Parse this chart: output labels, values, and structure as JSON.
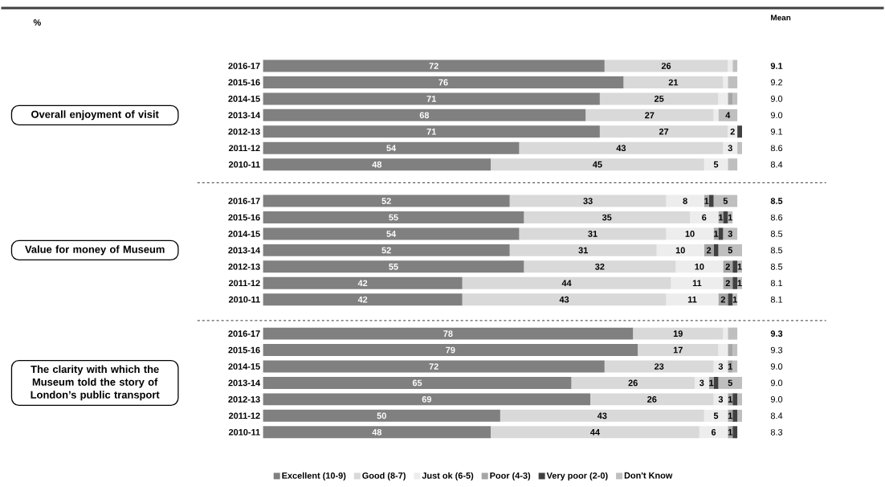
{
  "chart_data": [
    {
      "type": "bar",
      "orientation": "horizontal",
      "stacked": true,
      "ylabel": "Overall enjoyment of visit",
      "categories": [
        "2016-17",
        "2015-16",
        "2014-15",
        "2013-14",
        "2012-13",
        "2011-12",
        "2010-11"
      ],
      "series": [
        {
          "color": "#808080",
          "values": [
            72,
            76,
            71,
            68,
            71,
            54,
            48
          ],
          "value_labels": [
            "72",
            "76",
            "71",
            "68",
            "71",
            "54",
            "48"
          ]
        },
        {
          "color": "#d9d9d9",
          "values": [
            26,
            21,
            25,
            27,
            27,
            43,
            45
          ],
          "value_labels": [
            "26",
            "21",
            "25",
            "27",
            "27",
            "43",
            "45"
          ]
        },
        {
          "color": "#ededed",
          "values": [
            1,
            1,
            2,
            1,
            2,
            3,
            5
          ],
          "value_labels": [
            null,
            null,
            null,
            null,
            "2",
            "3",
            "5"
          ]
        },
        {
          "color": "#a6a6a6",
          "values": [
            0,
            0,
            1,
            0,
            0,
            0,
            0
          ],
          "value_labels": [
            null,
            null,
            null,
            null,
            null,
            null,
            null
          ]
        },
        {
          "color": "#404040",
          "values": [
            0,
            0,
            0,
            0,
            1,
            0,
            0
          ],
          "value_labels": [
            null,
            null,
            null,
            null,
            null,
            null,
            null
          ]
        },
        {
          "color": "#bfbfbf",
          "values": [
            1,
            2,
            1,
            4,
            0,
            1,
            2
          ],
          "value_labels": [
            null,
            null,
            null,
            "4",
            null,
            null,
            null
          ]
        }
      ],
      "annotations": [
        "%",
        "Mean",
        "9.1",
        "9.2",
        "9.0",
        "9.0",
        "9.1",
        "8.6",
        "8.4"
      ]
    },
    {
      "type": "bar",
      "orientation": "horizontal",
      "stacked": true,
      "ylabel": "Value for money of Museum",
      "categories": [
        "2016-17",
        "2015-16",
        "2014-15",
        "2013-14",
        "2012-13",
        "2011-12",
        "2010-11"
      ],
      "series": [
        {
          "color": "#808080",
          "values": [
            52,
            55,
            54,
            52,
            55,
            42,
            42
          ],
          "value_labels": [
            "52",
            "55",
            "54",
            "52",
            "55",
            "42",
            "42"
          ]
        },
        {
          "color": "#d9d9d9",
          "values": [
            33,
            35,
            31,
            31,
            32,
            44,
            43
          ],
          "value_labels": [
            "33",
            "35",
            "31",
            "31",
            "32",
            "44",
            "43"
          ]
        },
        {
          "color": "#ededed",
          "values": [
            8,
            6,
            10,
            10,
            10,
            11,
            11
          ],
          "value_labels": [
            "8",
            "6",
            "10",
            "10",
            "10",
            "11",
            "11"
          ]
        },
        {
          "color": "#a6a6a6",
          "values": [
            1,
            1,
            1,
            2,
            2,
            2,
            2
          ],
          "value_labels": [
            "1",
            "1",
            "1",
            "2",
            "2",
            "2",
            "2"
          ]
        },
        {
          "color": "#404040",
          "values": [
            1,
            1,
            1,
            1,
            1,
            1,
            1
          ],
          "value_labels": [
            null,
            null,
            null,
            null,
            null,
            null,
            null
          ]
        },
        {
          "color": "#bfbfbf",
          "values": [
            5,
            1,
            3,
            5,
            1,
            1,
            1
          ],
          "value_labels": [
            "5",
            "1",
            "3",
            "5",
            "1",
            "1",
            "1"
          ]
        }
      ],
      "annotations": [
        "8.5",
        "8.6",
        "8.5",
        "8.5",
        "8.5",
        "8.1",
        "8.1"
      ]
    },
    {
      "type": "bar",
      "orientation": "horizontal",
      "stacked": true,
      "ylabel": "The clarity with which the Museum told the story of London’s public transport",
      "legend": "bottom",
      "categories": [
        "2016-17",
        "2015-16",
        "2014-15",
        "2013-14",
        "2012-13",
        "2011-12",
        "2010-11"
      ],
      "series": [
        {
          "name": "Excellent (10-9)",
          "color": "#808080",
          "values": [
            78,
            79,
            72,
            65,
            69,
            50,
            48
          ],
          "value_labels": [
            "78",
            "79",
            "72",
            "65",
            "69",
            "50",
            "48"
          ]
        },
        {
          "name": "Good (8-7)",
          "color": "#d9d9d9",
          "values": [
            19,
            17,
            23,
            26,
            26,
            43,
            44
          ],
          "value_labels": [
            "19",
            "17",
            "23",
            "26",
            "26",
            "43",
            "44"
          ]
        },
        {
          "name": "Just ok (6-5)",
          "color": "#ededed",
          "values": [
            1,
            2,
            3,
            3,
            3,
            5,
            6
          ],
          "value_labels": [
            null,
            null,
            "3",
            "3",
            "3",
            "5",
            "6"
          ]
        },
        {
          "name": "Poor (4-3)",
          "color": "#a6a6a6",
          "values": [
            0,
            1,
            1,
            1,
            1,
            1,
            1
          ],
          "value_labels": [
            null,
            null,
            "1",
            "1",
            "1",
            "1",
            "1"
          ]
        },
        {
          "name": "Very poor (2-0)",
          "color": "#404040",
          "values": [
            0,
            0,
            0,
            1,
            1,
            1,
            1
          ],
          "value_labels": [
            null,
            null,
            null,
            null,
            null,
            null,
            null
          ]
        },
        {
          "name": "Don't Know",
          "color": "#bfbfbf",
          "values": [
            2,
            1,
            1,
            5,
            1,
            1,
            0
          ],
          "value_labels": [
            null,
            null,
            null,
            "5",
            null,
            null,
            null
          ]
        }
      ],
      "annotations": [
        "9.3",
        "9.3",
        "9.0",
        "9.0",
        "9.0",
        "8.4",
        "8.3"
      ]
    }
  ]
}
